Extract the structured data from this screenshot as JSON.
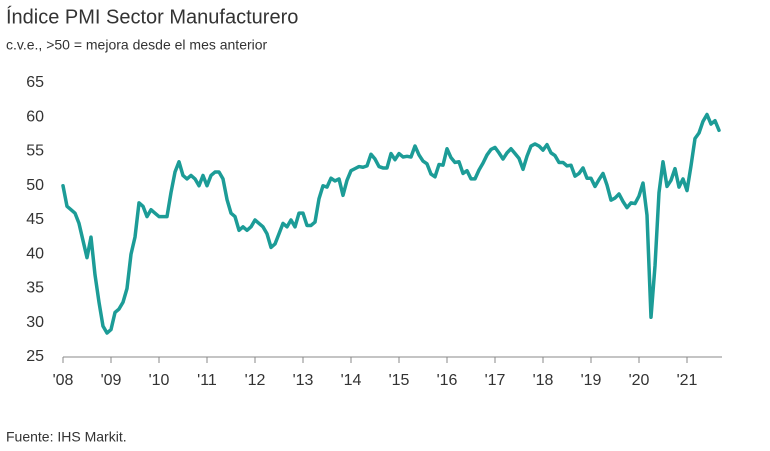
{
  "chart_data": {
    "type": "line",
    "title": "Índice PMI Sector Manufacturero",
    "subtitle": "c.v.e., >50 = mejora desde el mes anterior",
    "source": "Fuente: IHS Markit.",
    "color": "#1c9c97",
    "categories": [
      "'08",
      null,
      null,
      null,
      null,
      null,
      null,
      null,
      null,
      null,
      null,
      null,
      "'09",
      null,
      null,
      null,
      null,
      null,
      null,
      null,
      null,
      null,
      null,
      null,
      "'10",
      null,
      null,
      null,
      null,
      null,
      null,
      null,
      null,
      null,
      null,
      null,
      "'11",
      null,
      null,
      null,
      null,
      null,
      null,
      null,
      null,
      null,
      null,
      null,
      "'12",
      null,
      null,
      null,
      null,
      null,
      null,
      null,
      null,
      null,
      null,
      null,
      "'13",
      null,
      null,
      null,
      null,
      null,
      null,
      null,
      null,
      null,
      null,
      null,
      "'14",
      null,
      null,
      null,
      null,
      null,
      null,
      null,
      null,
      null,
      null,
      null,
      "'15",
      null,
      null,
      null,
      null,
      null,
      null,
      null,
      null,
      null,
      null,
      null,
      "'16",
      null,
      null,
      null,
      null,
      null,
      null,
      null,
      null,
      null,
      null,
      null,
      "'17",
      null,
      null,
      null,
      null,
      null,
      null,
      null,
      null,
      null,
      null,
      null,
      "'18",
      null,
      null,
      null,
      null,
      null,
      null,
      null,
      null,
      null,
      null,
      null,
      "'19",
      null,
      null,
      null,
      null,
      null,
      null,
      null,
      null,
      null,
      null,
      null,
      "'20",
      null,
      null,
      null,
      null,
      null,
      null,
      null,
      null,
      null,
      null,
      null,
      "'21",
      null,
      null,
      null,
      null,
      null,
      null,
      null,
      null
    ],
    "values": [
      50,
      47,
      46.5,
      46,
      44.5,
      42,
      39.5,
      42.5,
      37,
      33,
      29.5,
      28.5,
      29,
      31.5,
      32,
      33,
      35,
      40,
      42.5,
      47.5,
      47,
      45.5,
      46.5,
      46,
      45.5,
      45.5,
      45.5,
      49,
      52,
      53.5,
      51.5,
      51,
      51.5,
      51,
      50,
      51.5,
      50,
      51.5,
      52,
      52,
      51,
      48,
      46,
      45.5,
      43.5,
      44,
      43.5,
      44,
      45,
      44.5,
      44,
      43,
      41,
      41.5,
      43,
      44.5,
      44,
      45,
      44,
      46,
      46,
      44.2,
      44.2,
      44.7,
      48.1,
      50,
      49.8,
      51.1,
      50.7,
      51,
      48.6,
      50.8,
      52.2,
      52.5,
      52.8,
      52.7,
      52.9,
      54.6,
      53.9,
      52.8,
      52.6,
      52.6,
      54.7,
      53.8,
      54.7,
      54.2,
      54.3,
      54.2,
      55.8,
      54.5,
      53.6,
      53.2,
      51.7,
      51.3,
      53.1,
      53,
      55.4,
      54.1,
      53.4,
      53.5,
      51.8,
      52.2,
      51,
      51,
      52.3,
      53.3,
      54.5,
      55.3,
      55.6,
      54.8,
      53.9,
      54.8,
      55.4,
      54.7,
      54,
      52.4,
      54.3,
      55.8,
      56.1,
      55.8,
      55.2,
      56,
      54.8,
      54.4,
      53.4,
      53.4,
      52.9,
      53,
      51.4,
      51.8,
      52.6,
      51.1,
      51.1,
      49.9,
      50.9,
      51.8,
      50.1,
      47.9,
      48.2,
      48.8,
      47.7,
      46.8,
      47.5,
      47.4,
      48.5,
      50.4,
      45.7,
      30.8,
      38.3,
      49,
      53.5,
      49.9,
      50.8,
      52.5,
      49.8,
      51,
      49.3,
      52.9,
      56.9,
      57.7,
      59.4,
      60.4,
      59,
      59.5,
      58.1
    ],
    "ylim": [
      25,
      65
    ],
    "yticks": [
      25,
      30,
      35,
      40,
      45,
      50,
      55,
      60,
      65
    ]
  }
}
